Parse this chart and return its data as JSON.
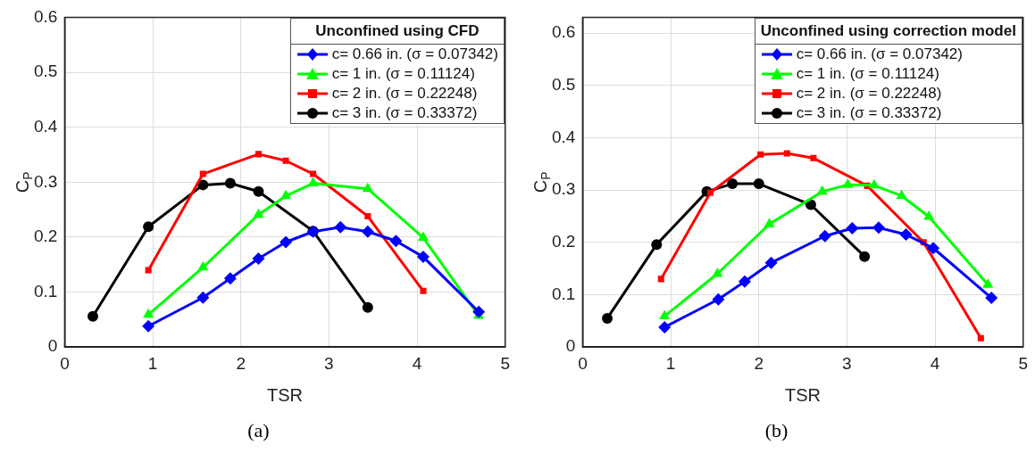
{
  "chart_data": [
    {
      "type": "line",
      "xlabel": "TSR",
      "ylabel": "C$_{P}$",
      "legend_title": "Unconfined using CFD",
      "legend": "top right",
      "grid": true,
      "line_style": "solid",
      "xlim": [
        0,
        5
      ],
      "xticks": [
        0,
        1,
        2,
        3,
        4,
        5
      ],
      "ylim": [
        0,
        0.6
      ],
      "yticks": [
        0,
        0.1,
        0.2,
        0.3,
        0.4,
        0.5,
        0.6
      ],
      "annotations": [
        "(a)"
      ],
      "series": [
        {
          "name": "c= 0.66 in. (σ = 0.07342)",
          "color": "#0000ff",
          "marker": "diamond",
          "x": [
            0.95,
            1.57,
            1.88,
            2.2,
            2.51,
            2.82,
            3.13,
            3.44,
            3.76,
            4.07,
            4.7
          ],
          "values": [
            0.038,
            0.09,
            0.125,
            0.161,
            0.191,
            0.21,
            0.218,
            0.21,
            0.193,
            0.164,
            0.064
          ]
        },
        {
          "name": "c= 1 in. (σ = 0.11124)",
          "color": "#00ff00",
          "marker": "triangle",
          "x": [
            0.95,
            1.57,
            2.2,
            2.51,
            2.82,
            3.44,
            4.07,
            4.7
          ],
          "values": [
            0.059,
            0.145,
            0.241,
            0.275,
            0.298,
            0.288,
            0.199,
            0.057
          ]
        },
        {
          "name": "c= 2 in. (σ = 0.22248)",
          "color": "#ff0000",
          "marker": "square",
          "x": [
            0.95,
            1.57,
            2.2,
            2.51,
            2.82,
            3.44,
            4.07
          ],
          "values": [
            0.14,
            0.315,
            0.351,
            0.339,
            0.315,
            0.238,
            0.102
          ]
        },
        {
          "name": "c= 3 in. (σ = 0.33372)",
          "color": "#000000",
          "marker": "circle",
          "x": [
            0.32,
            0.95,
            1.57,
            1.88,
            2.2,
            2.82,
            3.44
          ],
          "values": [
            0.056,
            0.219,
            0.295,
            0.298,
            0.283,
            0.211,
            0.072
          ]
        }
      ]
    },
    {
      "type": "line",
      "xlabel": "TSR",
      "ylabel": "C$_{P}$",
      "legend_title": "Unconfined using correction model",
      "legend": "top right",
      "grid": true,
      "line_style": "solid",
      "xlim": [
        0,
        5
      ],
      "xticks": [
        0,
        1,
        2,
        3,
        4,
        5
      ],
      "ylim": [
        0,
        0.63
      ],
      "yticks": [
        0,
        0.1,
        0.2,
        0.3,
        0.4,
        0.5,
        0.6
      ],
      "annotations": [
        "(b)"
      ],
      "series": [
        {
          "name": "c= 0.66 in. (σ = 0.07342)",
          "color": "#0000ff",
          "marker": "diamond",
          "x": [
            0.93,
            1.54,
            1.84,
            2.14,
            2.75,
            3.06,
            3.36,
            3.67,
            3.98,
            4.64
          ],
          "values": [
            0.038,
            0.091,
            0.125,
            0.161,
            0.212,
            0.227,
            0.228,
            0.215,
            0.189,
            0.094
          ]
        },
        {
          "name": "c= 1 in. (σ = 0.11124)",
          "color": "#00ff00",
          "marker": "triangle",
          "x": [
            0.93,
            1.53,
            2.12,
            2.72,
            3.01,
            3.31,
            3.62,
            3.93,
            4.6
          ],
          "values": [
            0.059,
            0.14,
            0.235,
            0.297,
            0.31,
            0.309,
            0.289,
            0.249,
            0.119
          ]
        },
        {
          "name": "c= 2 in. (σ = 0.22248)",
          "color": "#ff0000",
          "marker": "square",
          "x": [
            0.89,
            1.45,
            2.02,
            2.32,
            2.62,
            3.23,
            3.87,
            4.52
          ],
          "values": [
            0.13,
            0.295,
            0.368,
            0.37,
            0.361,
            0.308,
            0.2,
            0.017
          ]
        },
        {
          "name": "c= 3 in. (σ = 0.33372)",
          "color": "#000000",
          "marker": "circle",
          "x": [
            0.28,
            0.84,
            1.41,
            1.7,
            2.0,
            2.59,
            3.2
          ],
          "values": [
            0.055,
            0.196,
            0.297,
            0.312,
            0.312,
            0.272,
            0.173
          ]
        }
      ]
    }
  ]
}
